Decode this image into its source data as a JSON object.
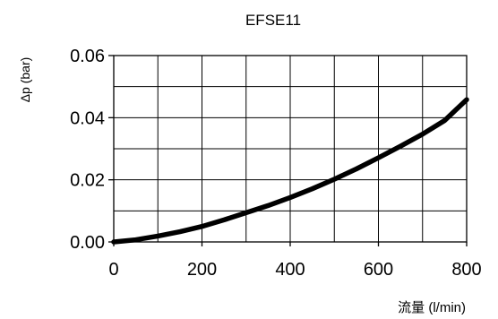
{
  "chart_data": {
    "type": "line",
    "title": "EFSE11",
    "xlabel": "流量 (l/min)",
    "ylabel": "Δp (bar)",
    "xlim": [
      0,
      800
    ],
    "ylim": [
      0,
      0.06
    ],
    "x_ticks": [
      "0",
      "200",
      "400",
      "600",
      "800"
    ],
    "y_ticks": [
      "0.00",
      "0.02",
      "0.04",
      "0.06"
    ],
    "x_tick_values": [
      0,
      200,
      400,
      600,
      800
    ],
    "y_tick_values": [
      0,
      0.02,
      0.04,
      0.06
    ],
    "grid": true,
    "x_grid_step": 100,
    "y_grid_step": 0.01,
    "series": [
      {
        "x": [
          0,
          50,
          100,
          150,
          200,
          250,
          300,
          350,
          400,
          450,
          500,
          550,
          600,
          650,
          700,
          750,
          800
        ],
        "values": [
          0,
          0.0007,
          0.0019,
          0.0033,
          0.005,
          0.0071,
          0.0094,
          0.0117,
          0.0143,
          0.0171,
          0.0202,
          0.0235,
          0.0271,
          0.0308,
          0.0347,
          0.0391,
          0.0458
        ]
      }
    ]
  }
}
